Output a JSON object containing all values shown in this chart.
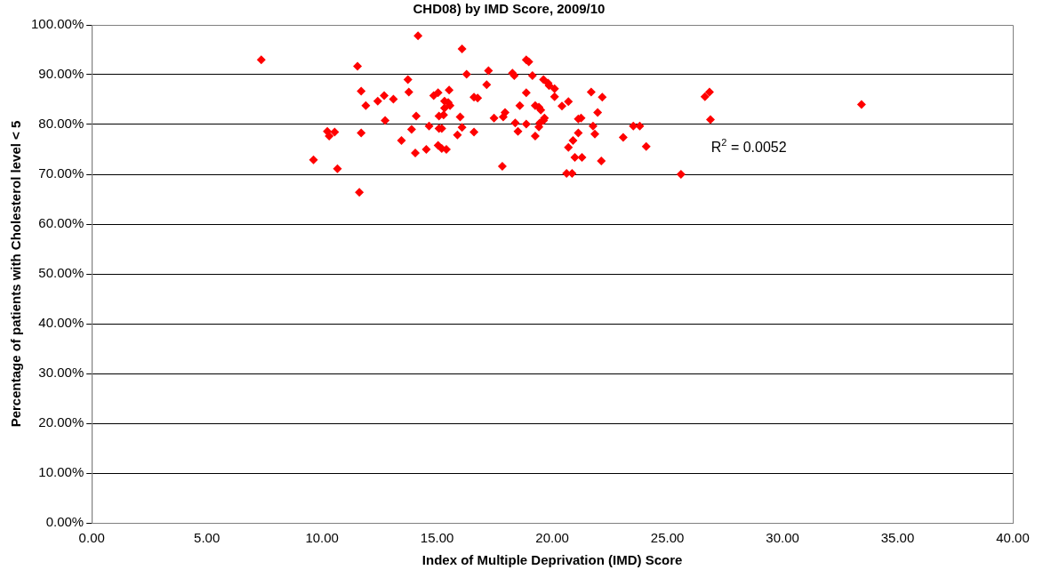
{
  "chart_data": {
    "type": "scatter",
    "title": "CHD08) by IMD Score, 2009/10",
    "xlabel": "Index of Multiple Deprivation (IMD) Score",
    "ylabel": "Percentage of patients with Cholesterol level < 5",
    "annotations": [
      "R$^{2}$ = 0.0052"
    ],
    "marker": "diamond",
    "grid": "y",
    "xlim": [
      0,
      40
    ],
    "xticks": [
      {
        "value": 0,
        "label": "0.00"
      },
      {
        "value": 5,
        "label": "5.00"
      },
      {
        "value": 10,
        "label": "10.00"
      },
      {
        "value": 15,
        "label": "15.00"
      },
      {
        "value": 20,
        "label": "20.00"
      },
      {
        "value": 25,
        "label": "25.00"
      },
      {
        "value": 30,
        "label": "30.00"
      },
      {
        "value": 35,
        "label": "35.00"
      },
      {
        "value": 40,
        "label": "40.00"
      }
    ],
    "ylim": [
      0,
      100
    ],
    "yticks": [
      {
        "value": 0,
        "label": "0.00%"
      },
      {
        "value": 10,
        "label": "10.00%"
      },
      {
        "value": 20,
        "label": "20.00%"
      },
      {
        "value": 30,
        "label": "30.00%"
      },
      {
        "value": 40,
        "label": "40.00%"
      },
      {
        "value": 50,
        "label": "50.00%"
      },
      {
        "value": 60,
        "label": "60.00%"
      },
      {
        "value": 70,
        "label": "70.00%"
      },
      {
        "value": 80,
        "label": "80.00%"
      },
      {
        "value": 90,
        "label": "90.00%"
      },
      {
        "value": 100,
        "label": "100.00%"
      }
    ],
    "series": [
      {
        "color": "#ff0000",
        "x": [
          7.36,
          11.54,
          13.73,
          11.7,
          13.77,
          12.7,
          12.42,
          13.1,
          11.9,
          14.09,
          12.74,
          10.23,
          10.31,
          10.55,
          11.7,
          13.89,
          13.45,
          14.05,
          9.63,
          10.67,
          11.62,
          14.53,
          16.08,
          16.28,
          17.23,
          17.15,
          18.27,
          18.35,
          18.87,
          18.98,
          19.14,
          19.62,
          19.82,
          19.86,
          20.1,
          20.1,
          18.87,
          20.42,
          20.7,
          21.69,
          22.17,
          21.97,
          21.13,
          21.25,
          21.77,
          21.85,
          21.13,
          20.9,
          20.7,
          20.98,
          21.29,
          22.13,
          20.62,
          20.86,
          17.83,
          18.59,
          19.26,
          19.42,
          19.5,
          19.66,
          19.62,
          19.46,
          19.42,
          19.26,
          18.87,
          18.51,
          18.39,
          17.95,
          17.87,
          17.47,
          16.6,
          16.76,
          16.6,
          16.08,
          16.0,
          15.88,
          15.52,
          15.48,
          15.32,
          15.32,
          15.56,
          14.85,
          15.04,
          15.08,
          15.28,
          14.65,
          15.08,
          15.2,
          15.04,
          15.2,
          15.4,
          26.63,
          26.83,
          26.87,
          23.52,
          23.8,
          23.08,
          24.08,
          25.59,
          33.43,
          14.17
        ],
        "values": [
          93.0,
          91.7,
          89.0,
          86.7,
          86.5,
          85.8,
          84.7,
          85.1,
          83.8,
          81.7,
          80.8,
          78.6,
          77.7,
          78.5,
          78.3,
          79.0,
          76.8,
          74.3,
          72.9,
          71.1,
          66.4,
          75.0,
          95.2,
          90.1,
          90.8,
          88.0,
          90.3,
          89.8,
          93.0,
          92.6,
          89.8,
          89.0,
          88.3,
          87.8,
          87.2,
          85.6,
          86.4,
          83.7,
          84.6,
          86.5,
          85.5,
          82.4,
          81.1,
          81.3,
          79.7,
          78.1,
          78.3,
          76.8,
          75.4,
          73.4,
          73.4,
          72.7,
          70.2,
          70.2,
          71.6,
          83.8,
          83.8,
          83.5,
          82.9,
          81.3,
          80.8,
          80.3,
          79.5,
          77.7,
          80.1,
          78.6,
          80.3,
          82.4,
          81.5,
          81.3,
          85.5,
          85.3,
          78.5,
          79.4,
          81.5,
          77.9,
          86.9,
          84.4,
          84.7,
          83.3,
          83.8,
          85.8,
          86.4,
          81.7,
          81.9,
          79.7,
          79.2,
          79.2,
          75.8,
          75.2,
          75.0,
          85.6,
          86.5,
          81.0,
          79.7,
          79.7,
          77.4,
          75.6,
          70.0,
          84.0,
          97.8
        ]
      }
    ]
  }
}
